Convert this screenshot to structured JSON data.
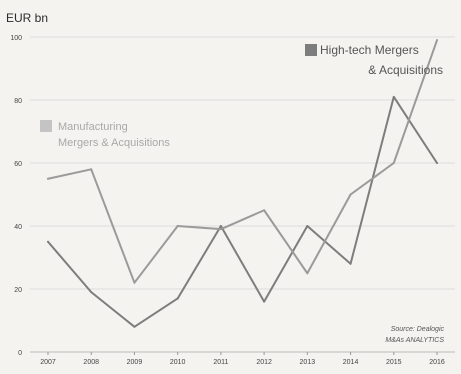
{
  "chart_data": {
    "type": "line",
    "unit_label": "EUR bn",
    "x": [
      "2007",
      "2008",
      "2009",
      "2010",
      "2011",
      "2012",
      "2013",
      "2014",
      "2015",
      "2016"
    ],
    "ylim": [
      0,
      100
    ],
    "yticks": [
      0,
      20,
      40,
      60,
      80,
      100
    ],
    "grid": true,
    "series": [
      {
        "name_lines": [
          "High-tech Mergers",
          "& Acquisitions"
        ],
        "color": "#7d7d7d",
        "values": [
          35,
          19,
          8,
          17,
          40,
          16,
          40,
          28,
          81,
          60
        ]
      },
      {
        "name_lines": [
          "Manufacturing",
          "Mergers & Acquisitions"
        ],
        "color": "#9a9a9a",
        "values": [
          55,
          58,
          22,
          40,
          39,
          45,
          25,
          50,
          60,
          99
        ]
      }
    ],
    "source_lines": [
      "Source: Dealogic",
      "M&As ANALYTICS"
    ]
  }
}
